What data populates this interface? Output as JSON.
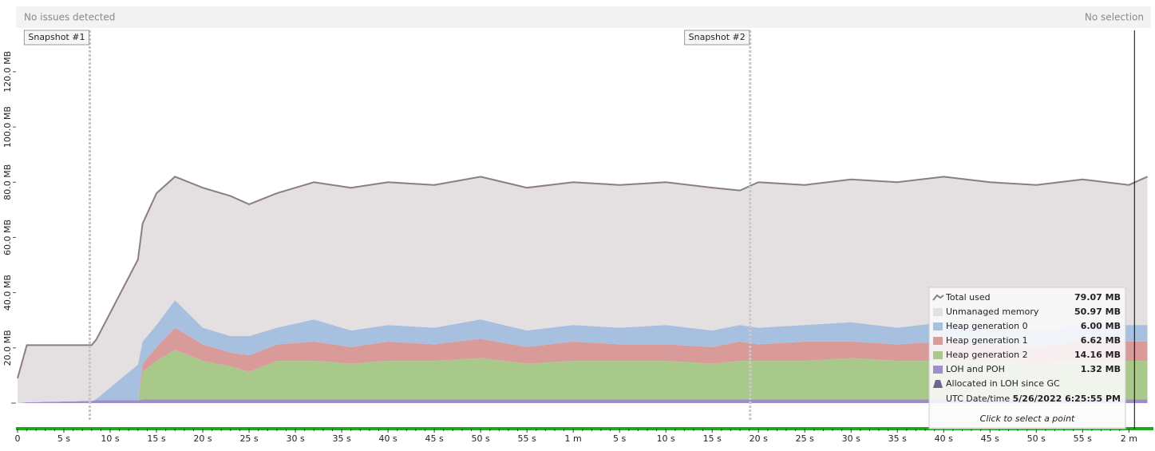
{
  "header": {
    "status": "No issues detected",
    "selection": "No selection"
  },
  "chart_data": {
    "type": "area",
    "x": [
      0,
      1,
      8,
      8.5,
      13,
      13.5,
      15,
      17,
      20,
      23,
      25,
      28,
      32,
      36,
      40,
      45,
      50,
      55,
      60,
      65,
      70,
      75,
      78,
      80,
      85,
      90,
      95,
      100,
      105,
      110,
      115,
      120,
      122
    ],
    "series": [
      {
        "name": "Total used",
        "color": "#8a7f80",
        "values": [
          9,
          21,
          21,
          23,
          52,
          65,
          76,
          82,
          78,
          75,
          72,
          76,
          80,
          78,
          80,
          79,
          82,
          78,
          80,
          79,
          80,
          78,
          77,
          80,
          79,
          81,
          80,
          82,
          80,
          79,
          81,
          79,
          82
        ]
      },
      {
        "name": "Unmanaged memory",
        "color": "#e4dfe0",
        "values": [
          9,
          20.7,
          20.2,
          21.5,
          38,
          42.7,
          47.7,
          44.7,
          50.7,
          50.7,
          47.7,
          48.7,
          49.7,
          51.7,
          51.7,
          51.7,
          51.7,
          51.7,
          51.7,
          51.7,
          51.7,
          51.7,
          48.7,
          52.7,
          50.7,
          51.7,
          52.7,
          52.7,
          52.7,
          52.7,
          52.7,
          50.7,
          53.7
        ]
      },
      {
        "name": "Heap generation 0",
        "color": "#a8c0e0",
        "values": [
          0,
          0,
          0,
          0.5,
          13,
          8,
          8,
          10,
          6,
          6,
          7,
          6,
          8,
          6,
          6,
          6,
          7,
          6,
          6,
          6,
          7,
          6,
          6,
          6,
          6,
          7,
          6,
          7,
          6,
          6,
          6,
          6,
          6
        ]
      },
      {
        "name": "Heap generation 1",
        "color": "#d99a9a",
        "values": [
          0,
          0,
          0,
          0,
          0,
          3,
          5,
          8,
          6,
          5,
          6,
          6,
          7,
          6,
          7,
          6,
          7,
          6,
          7,
          6,
          6,
          6,
          7,
          6,
          7,
          6,
          6,
          7,
          6,
          6,
          7,
          7,
          7
        ]
      },
      {
        "name": "Heap generation 2",
        "color": "#a9c98a",
        "values": [
          0,
          0,
          0,
          0,
          0,
          10,
          14,
          18,
          14,
          12,
          10,
          14,
          14,
          13,
          14,
          14,
          15,
          13,
          14,
          14,
          14,
          13,
          14,
          14,
          14,
          15,
          14,
          14,
          14,
          13,
          14,
          14,
          14
        ]
      },
      {
        "name": "LOH and POH",
        "color": "#9e8fc8",
        "values": [
          0,
          0.3,
          0.8,
          1,
          1,
          1.3,
          1.3,
          1.3,
          1.3,
          1.3,
          1.3,
          1.3,
          1.3,
          1.3,
          1.3,
          1.3,
          1.3,
          1.3,
          1.3,
          1.3,
          1.3,
          1.3,
          1.3,
          1.3,
          1.3,
          1.3,
          1.3,
          1.3,
          1.3,
          1.3,
          1.3,
          1.3,
          1.3
        ]
      }
    ],
    "xlim": [
      0,
      122.3
    ],
    "ylim": [
      0,
      135
    ],
    "xticks": [
      0,
      {
        "value": 5,
        "label": "5 s"
      },
      {
        "value": 10,
        "label": "10 s"
      },
      {
        "value": 15,
        "label": "15 s"
      },
      {
        "value": 20,
        "label": "20 s"
      },
      {
        "value": 25,
        "label": "25 s"
      },
      {
        "value": 30,
        "label": "30 s"
      },
      {
        "value": 35,
        "label": "35 s"
      },
      {
        "value": 40,
        "label": "40 s"
      },
      {
        "value": 45,
        "label": "45 s"
      },
      {
        "value": 50,
        "label": "50 s"
      },
      {
        "value": 55,
        "label": "55 s"
      },
      {
        "value": 60,
        "label": "1 m"
      },
      {
        "value": 65,
        "label": "5 s"
      },
      {
        "value": 70,
        "label": "10 s"
      },
      {
        "value": 75,
        "label": "15 s"
      },
      {
        "value": 80,
        "label": "20 s"
      },
      {
        "value": 85,
        "label": "25 s"
      },
      {
        "value": 90,
        "label": "30 s"
      },
      {
        "value": 95,
        "label": "35 s"
      },
      {
        "value": 100,
        "label": "40 s"
      },
      {
        "value": 105,
        "label": "45 s"
      },
      {
        "value": 110,
        "label": "50 s"
      },
      {
        "value": 115,
        "label": "55 s"
      },
      {
        "value": 120,
        "label": "2 m"
      }
    ],
    "yticks": [
      {
        "value": 20,
        "label": "20.0 MB"
      },
      {
        "value": 40,
        "label": "40.0 MB"
      },
      {
        "value": 60,
        "label": "60.0 MB"
      },
      {
        "value": 80,
        "label": "80.0 MB"
      },
      {
        "value": 100,
        "label": "100.0 MB"
      },
      {
        "value": 120,
        "label": "120.0 MB"
      }
    ],
    "snapshots": [
      {
        "label": "Snapshot #1",
        "x": 7.8
      },
      {
        "label": "Snapshot #2",
        "x": 79.1
      }
    ],
    "cursor_x": 120.6,
    "readout": {
      "values": [
        "79.07 MB",
        "50.97 MB",
        "6.00 MB",
        "6.62 MB",
        "14.16 MB",
        "1.32 MB"
      ],
      "extra": "Allocated in LOH since GC",
      "extra_color": "#6f6390",
      "date_label": "UTC Date/time",
      "date": "5/26/2022 6:25:55 PM",
      "hint": "Click to select a point"
    }
  }
}
